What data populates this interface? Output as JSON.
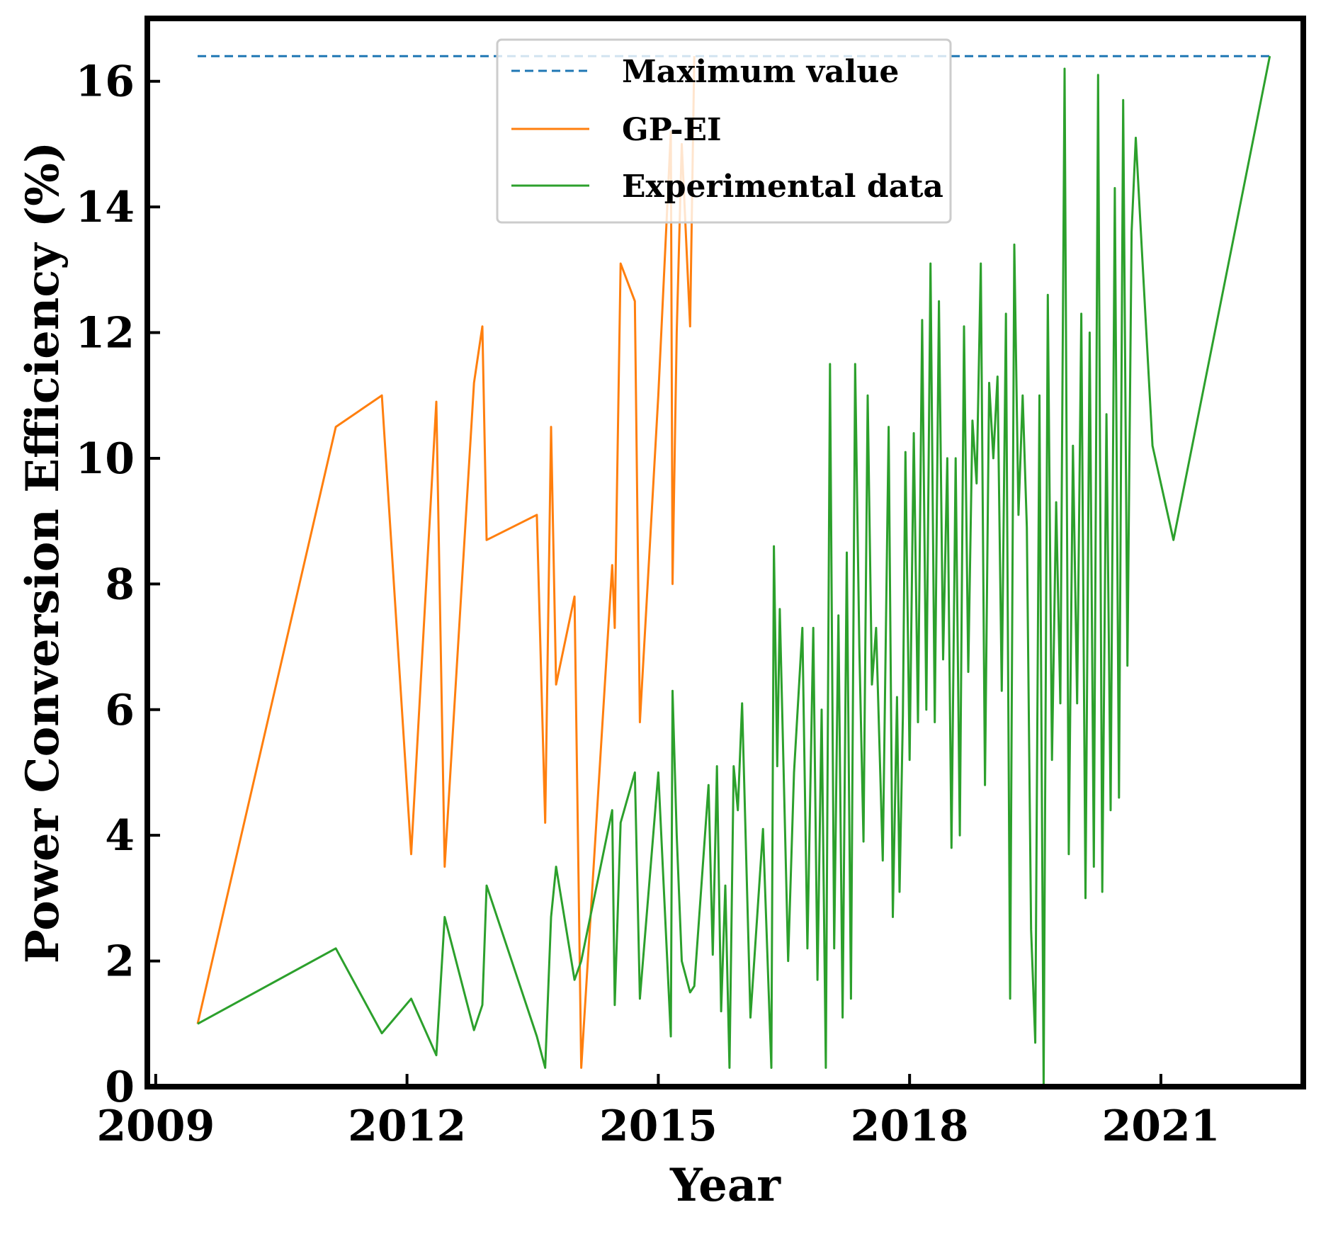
{
  "chart_data": {
    "type": "line",
    "title": "",
    "xlabel": "Year",
    "ylabel": "Power Conversion Efficiency (%)",
    "xlim": [
      2008.9,
      2022.7
    ],
    "ylim": [
      0,
      17
    ],
    "xticks": [
      2009,
      2012,
      2015,
      2018,
      2021
    ],
    "xtick_labels": [
      "2009",
      "2012",
      "2015",
      "2018",
      "2021"
    ],
    "yticks": [
      0,
      2,
      4,
      6,
      8,
      10,
      12,
      14,
      16
    ],
    "ytick_labels": [
      "0",
      "2",
      "4",
      "6",
      "8",
      "10",
      "12",
      "14",
      "16"
    ],
    "grid": false,
    "legend_position": "top-center",
    "colors": {
      "max": "#1f77b4",
      "gpei": "#ff7f0e",
      "experimental": "#2ca02c",
      "frame": "#000000"
    },
    "series": [
      {
        "name": "Maximum value",
        "key": "max",
        "style": "dashed",
        "x": [
          2009.5,
          2022.3
        ],
        "y": [
          16.4,
          16.4
        ]
      },
      {
        "name": "GP-EI",
        "key": "gpei",
        "style": "solid",
        "x": [
          2009.5,
          2011.15,
          2011.7,
          2012.05,
          2012.35,
          2012.45,
          2012.8,
          2012.9,
          2012.95,
          2013.55,
          2013.65,
          2013.72,
          2013.78,
          2014.0,
          2014.08,
          2014.45,
          2014.48,
          2014.55,
          2014.72,
          2014.78,
          2015.0,
          2015.15,
          2015.17,
          2015.22,
          2015.28,
          2015.38,
          2015.43
        ],
        "y": [
          1.0,
          10.5,
          11.0,
          3.7,
          10.9,
          3.5,
          11.2,
          12.1,
          8.7,
          9.1,
          4.2,
          10.5,
          6.4,
          7.8,
          0.3,
          8.3,
          7.3,
          13.1,
          12.5,
          5.8,
          11.0,
          15.2,
          8.0,
          12.0,
          15.0,
          12.1,
          16.4
        ]
      },
      {
        "name": "Experimental data",
        "key": "experimental",
        "style": "solid",
        "x": [
          2009.5,
          2011.15,
          2011.7,
          2012.05,
          2012.35,
          2012.45,
          2012.8,
          2012.9,
          2012.95,
          2013.55,
          2013.65,
          2013.72,
          2013.78,
          2014.0,
          2014.08,
          2014.45,
          2014.48,
          2014.55,
          2014.72,
          2014.78,
          2015.0,
          2015.15,
          2015.17,
          2015.22,
          2015.28,
          2015.38,
          2015.43,
          2015.6,
          2015.65,
          2015.7,
          2015.75,
          2015.8,
          2015.85,
          2015.9,
          2015.95,
          2016.0,
          2016.1,
          2016.25,
          2016.35,
          2016.38,
          2016.42,
          2016.45,
          2016.55,
          2016.62,
          2016.72,
          2016.78,
          2016.85,
          2016.9,
          2016.95,
          2017.0,
          2017.05,
          2017.1,
          2017.15,
          2017.2,
          2017.25,
          2017.3,
          2017.35,
          2017.4,
          2017.45,
          2017.5,
          2017.55,
          2017.6,
          2017.68,
          2017.75,
          2017.8,
          2017.85,
          2017.88,
          2017.92,
          2017.95,
          2018.0,
          2018.05,
          2018.1,
          2018.15,
          2018.2,
          2018.25,
          2018.3,
          2018.35,
          2018.4,
          2018.45,
          2018.5,
          2018.55,
          2018.6,
          2018.65,
          2018.7,
          2018.75,
          2018.8,
          2018.85,
          2018.9,
          2018.95,
          2019.0,
          2019.05,
          2019.1,
          2019.15,
          2019.2,
          2019.25,
          2019.3,
          2019.35,
          2019.4,
          2019.45,
          2019.5,
          2019.55,
          2019.6,
          2019.65,
          2019.7,
          2019.75,
          2019.8,
          2019.85,
          2019.9,
          2019.95,
          2020.0,
          2020.05,
          2020.1,
          2020.15,
          2020.2,
          2020.25,
          2020.3,
          2020.35,
          2020.4,
          2020.45,
          2020.5,
          2020.55,
          2020.6,
          2020.65,
          2020.7,
          2020.9,
          2021.15,
          2022.3
        ],
        "y": [
          1.0,
          2.2,
          0.85,
          1.4,
          0.5,
          2.7,
          0.9,
          1.3,
          3.2,
          0.8,
          0.3,
          2.7,
          3.5,
          1.7,
          2.0,
          4.4,
          1.3,
          4.2,
          5.0,
          1.4,
          5.0,
          0.8,
          6.3,
          4.0,
          2.0,
          1.5,
          1.6,
          4.8,
          2.1,
          5.1,
          1.2,
          3.2,
          0.3,
          5.1,
          4.4,
          6.1,
          1.1,
          4.1,
          0.3,
          8.6,
          5.1,
          7.6,
          2.0,
          5.0,
          7.3,
          2.2,
          7.3,
          1.7,
          6.0,
          0.3,
          11.5,
          2.2,
          7.5,
          1.1,
          8.5,
          1.4,
          11.5,
          7.0,
          3.9,
          11.0,
          6.4,
          7.3,
          3.6,
          10.5,
          2.7,
          6.2,
          3.1,
          5.9,
          10.1,
          5.2,
          10.4,
          5.8,
          12.2,
          6.0,
          13.1,
          5.8,
          12.5,
          6.8,
          10.0,
          3.8,
          10.0,
          4.0,
          12.1,
          6.6,
          10.6,
          9.6,
          13.1,
          4.8,
          11.2,
          10.0,
          11.3,
          6.3,
          12.3,
          1.4,
          13.4,
          9.1,
          11.0,
          8.9,
          2.5,
          0.7,
          11.0,
          0.0,
          12.6,
          5.2,
          9.3,
          6.1,
          16.2,
          3.7,
          10.2,
          6.1,
          12.3,
          3.0,
          12.0,
          3.5,
          16.1,
          3.1,
          10.7,
          4.4,
          14.3,
          4.6,
          15.7,
          6.7,
          13.6,
          15.1,
          10.2,
          8.7,
          16.4
        ]
      }
    ]
  }
}
